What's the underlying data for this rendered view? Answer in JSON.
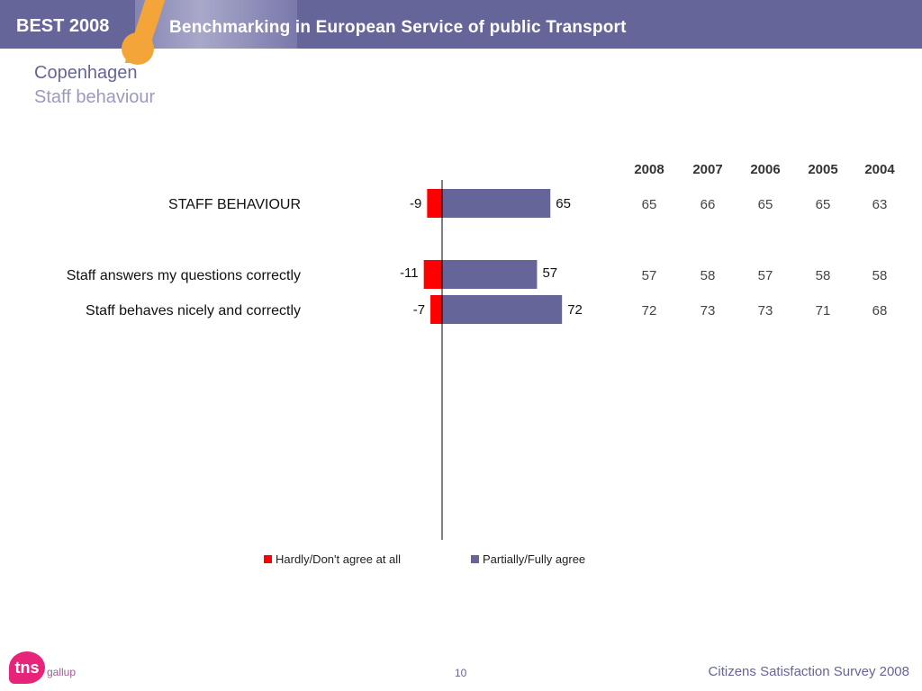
{
  "header": {
    "brand": "BEST 2008",
    "title": "Benchmarking in European Service of public Transport"
  },
  "slide": {
    "city": "Copenhagen",
    "subtitle": "Staff behaviour"
  },
  "colors": {
    "negative": "#ff0000",
    "positive": "#66659a",
    "header": "#66659a",
    "accent": "#f4a53a"
  },
  "chart_data": {
    "type": "bar",
    "orientation": "horizontal-diverging",
    "categories": [
      "STAFF BEHAVIOUR",
      "Staff answers my questions correctly",
      "Staff behaves nicely and correctly"
    ],
    "series": [
      {
        "name": "Hardly/Don't agree at all",
        "values": [
          -9,
          -11,
          -7
        ],
        "labels": [
          "-9",
          "-11",
          "-7"
        ]
      },
      {
        "name": "Partially/Fully agree",
        "values": [
          65,
          57,
          72
        ],
        "labels": [
          "65",
          "57",
          "72"
        ]
      }
    ],
    "legend_position": "bottom",
    "history": {
      "years": [
        "2008",
        "2007",
        "2006",
        "2005",
        "2004"
      ],
      "rows": [
        [
          "65",
          "66",
          "65",
          "65",
          "63"
        ],
        [
          "57",
          "58",
          "57",
          "58",
          "58"
        ],
        [
          "72",
          "73",
          "73",
          "71",
          "68"
        ]
      ]
    }
  },
  "footer": {
    "page": "10",
    "survey": "Citizens Satisfaction Survey 2008",
    "logo": "tns",
    "logo_sub": "gallup"
  }
}
